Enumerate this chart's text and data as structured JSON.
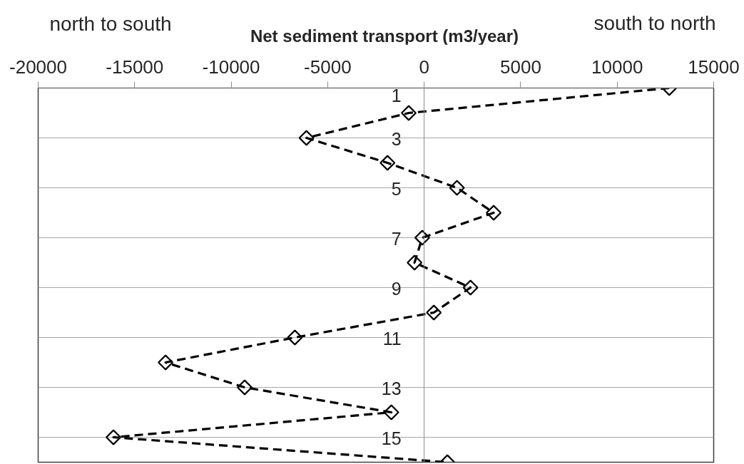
{
  "chart_data": {
    "type": "line",
    "title": "Net sediment transport (m3/year)",
    "annotations": [
      "north to south",
      "south to north"
    ],
    "x": [
      12700,
      -800,
      -6100,
      -1900,
      1700,
      3600,
      -100,
      -500,
      2400,
      500,
      -6700,
      -13400,
      -9300,
      -1700,
      -16100,
      1200
    ],
    "series": [
      {
        "color": "#000000",
        "values": [
          1,
          2,
          3,
          4,
          5,
          6,
          7,
          8,
          9,
          10,
          11,
          12,
          13,
          14,
          15,
          16
        ]
      }
    ],
    "xlim": [
      -20000,
      15000
    ],
    "xticks": [
      -20000,
      -15000,
      -10000,
      -5000,
      0,
      5000,
      10000,
      15000
    ],
    "ylim": [
      16,
      1
    ],
    "yticks": [
      1,
      3,
      5,
      7,
      9,
      11,
      13,
      15
    ],
    "grid": "y",
    "marker": "diamond",
    "line_style": "dashed"
  }
}
